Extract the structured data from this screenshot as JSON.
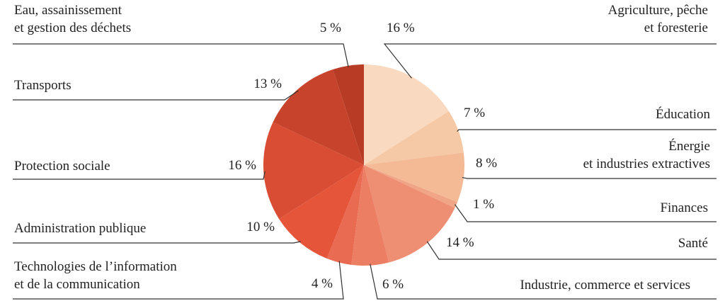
{
  "chart_data": {
    "type": "pie",
    "categories": [
      "Agriculture, pêche\net foresterie",
      "Éducation",
      "Énergie\net industries extractives",
      "Finances",
      "Santé",
      "Industrie, commerce et services",
      "Technologies de l’information\net de la communication",
      "Administration publique",
      "Protection sociale",
      "Transports",
      "Eau, assainissement\net gestion des déchets"
    ],
    "values": [
      16,
      7,
      8,
      1,
      14,
      6,
      4,
      10,
      16,
      13,
      5
    ],
    "value_labels": [
      "16 %",
      "7 %",
      "8 %",
      "1 %",
      "14 %",
      "6 %",
      "4 %",
      "10 %",
      "16 %",
      "13 %",
      "5 %"
    ],
    "colors": [
      "#f9d9bf",
      "#f6c9a6",
      "#f4b995",
      "#f0a586",
      "#ee8f73",
      "#ec7e63",
      "#e96b52",
      "#e4553a",
      "#d94d34",
      "#c8432b",
      "#b83c25"
    ]
  }
}
